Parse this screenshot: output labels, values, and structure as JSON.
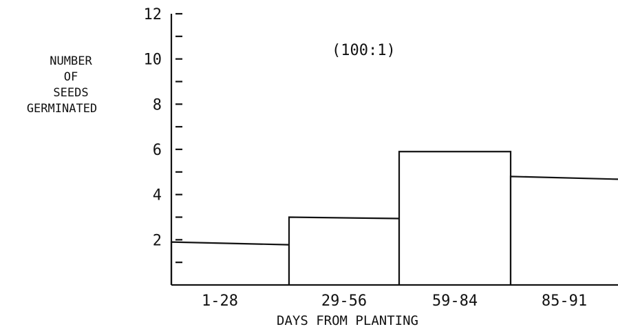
{
  "chart_data": {
    "type": "bar",
    "title": "",
    "annotation": "(100:1)",
    "ylabel_lines": [
      "NUMBER",
      "OF",
      "SEEDS",
      "GERMINATED"
    ],
    "xlabel": "DAYS FROM PLANTING",
    "categories": [
      "1-28",
      "29-56",
      "59-84",
      "85-91"
    ],
    "values": [
      1.9,
      3.0,
      5.9,
      4.8
    ],
    "ylim": [
      0,
      12
    ],
    "y_major_ticks": [
      2,
      4,
      6,
      8,
      10,
      12
    ],
    "y_tick_labels": [
      "2",
      "4",
      "6",
      "8",
      "10",
      "12"
    ],
    "y_minor_step": 1,
    "grid": false,
    "legend": "none"
  }
}
